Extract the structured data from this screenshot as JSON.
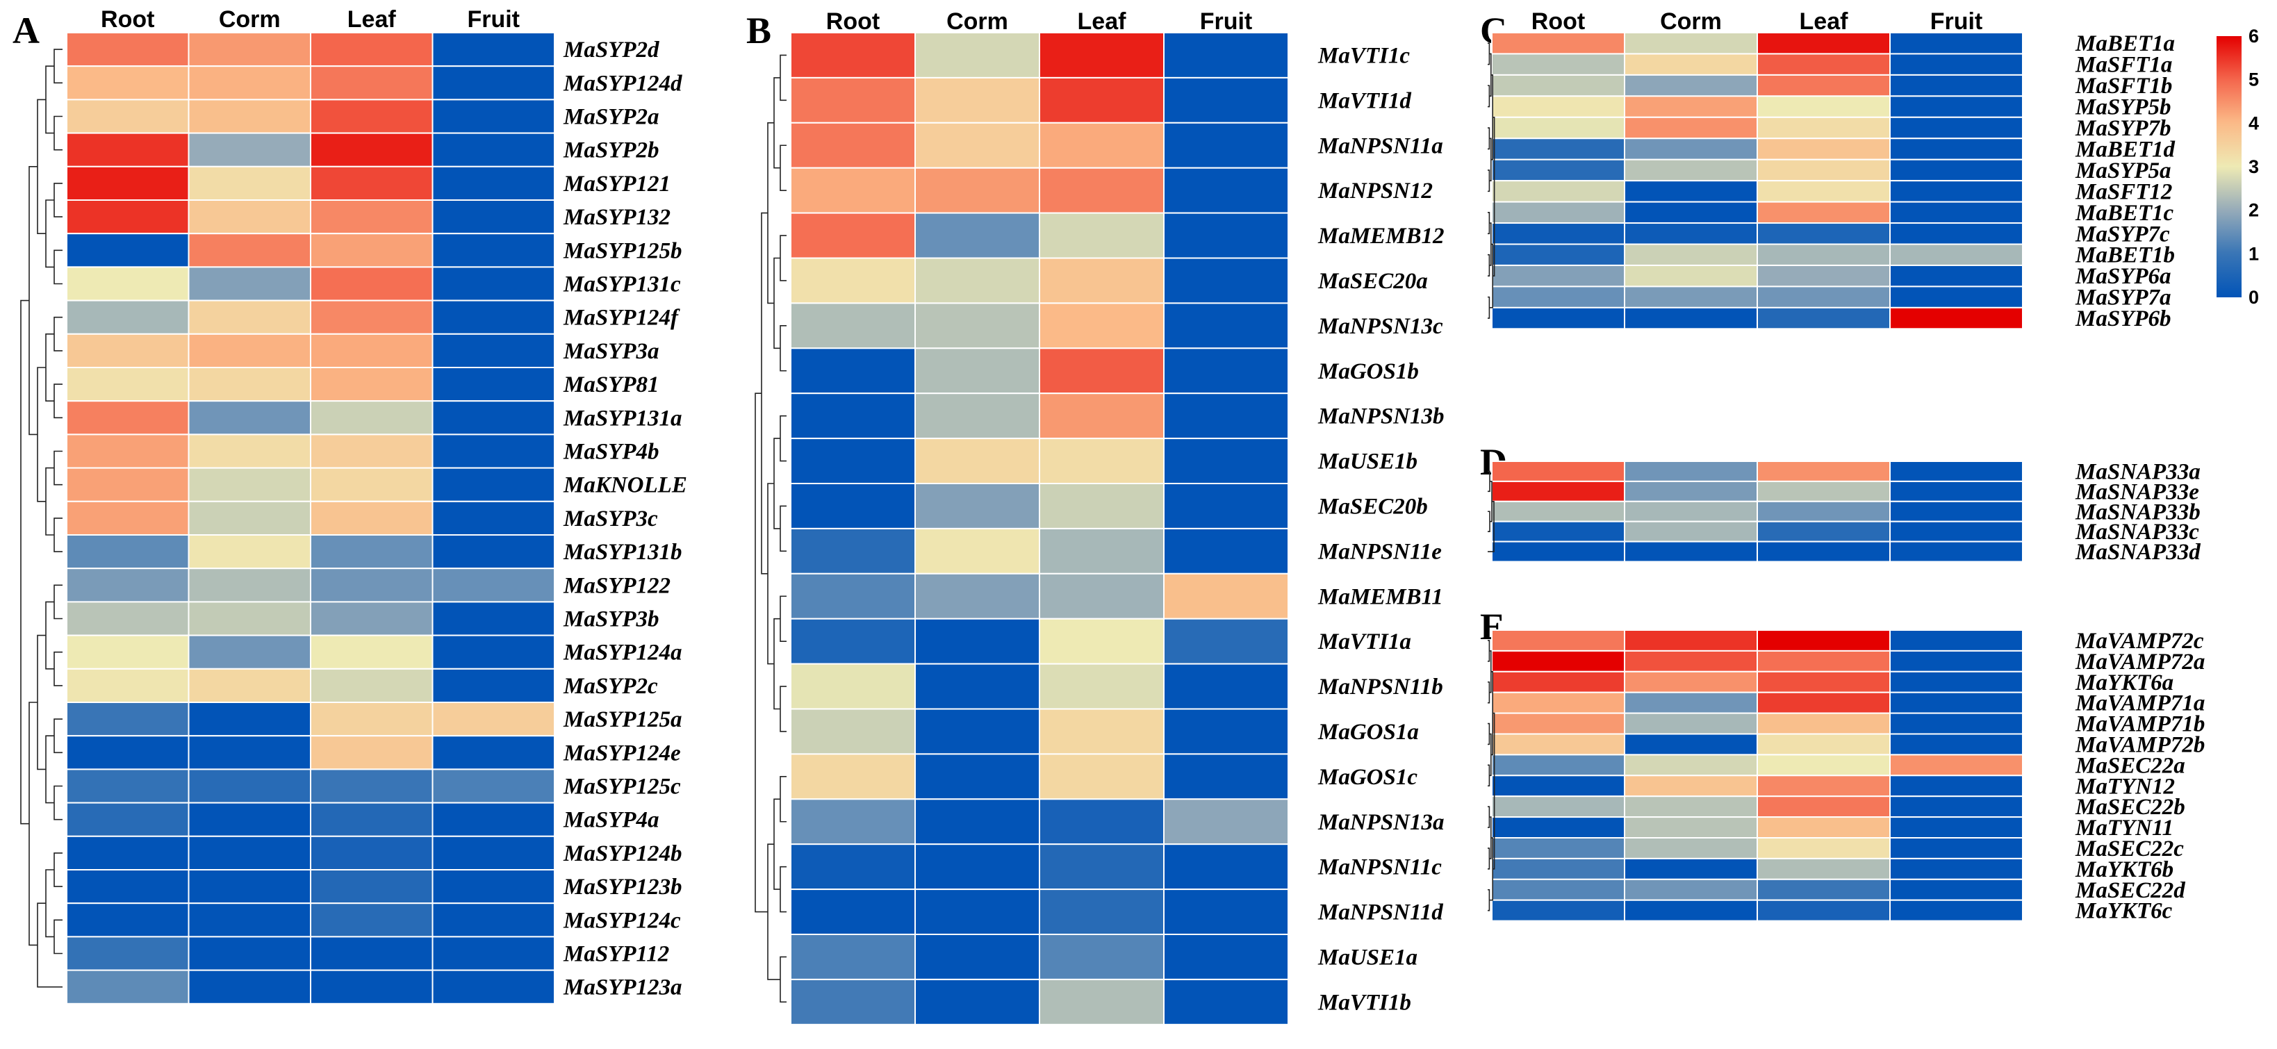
{
  "chart_data": [
    {
      "type": "heatmap",
      "panel": "A",
      "columns": [
        "Root",
        "Corm",
        "Leaf",
        "Fruit"
      ],
      "rows": [
        "MaSYP2d",
        "MaSYP124d",
        "MaSYP2a",
        "MaSYP2b",
        "MaSYP121",
        "MaSYP132",
        "MaSYP125b",
        "MaSYP131c",
        "MaSYP124f",
        "MaSYP3a",
        "MaSYP81",
        "MaSYP131a",
        "MaSYP4b",
        "MaKNOLLE",
        "MaSYP3c",
        "MaSYP131b",
        "MaSYP122",
        "MaSYP3b",
        "MaSYP124a",
        "MaSYP2c",
        "MaSYP125a",
        "MaSYP124e",
        "MaSYP125c",
        "MaSYP4a",
        "MaSYP124b",
        "MaSYP123b",
        "MaSYP124c",
        "MaSYP112",
        "MaSYP123a"
      ],
      "values": [
        [
          4.8,
          4.4,
          5.0,
          0
        ],
        [
          4.0,
          4.1,
          4.8,
          0
        ],
        [
          3.6,
          3.9,
          5.2,
          0
        ],
        [
          5.5,
          2.0,
          5.7,
          0
        ],
        [
          5.7,
          3.3,
          5.3,
          0
        ],
        [
          5.5,
          3.7,
          4.6,
          0
        ],
        [
          0,
          4.7,
          4.3,
          0
        ],
        [
          3.0,
          1.8,
          4.9,
          0
        ],
        [
          2.2,
          3.5,
          4.6,
          0
        ],
        [
          3.7,
          4.1,
          4.2,
          0
        ],
        [
          3.2,
          3.4,
          4.1,
          0
        ],
        [
          4.7,
          1.6,
          2.6,
          0
        ],
        [
          4.3,
          3.3,
          3.6,
          0
        ],
        [
          4.3,
          2.7,
          3.4,
          0
        ],
        [
          4.3,
          2.6,
          3.8,
          0
        ],
        [
          1.4,
          3.1,
          1.5,
          0
        ],
        [
          1.7,
          2.3,
          1.6,
          1.5
        ],
        [
          2.4,
          2.5,
          1.8,
          0
        ],
        [
          3.0,
          1.6,
          3.0,
          0
        ],
        [
          3.1,
          3.4,
          2.7,
          0
        ],
        [
          1.0,
          0,
          3.5,
          3.6
        ],
        [
          0,
          0,
          3.7,
          0
        ],
        [
          0.9,
          0.7,
          1.0,
          1.2
        ],
        [
          0.7,
          0,
          0.6,
          0
        ],
        [
          0,
          0,
          0.4,
          0
        ],
        [
          0,
          0,
          0.6,
          0
        ],
        [
          0,
          0,
          0.7,
          0
        ],
        [
          0.9,
          0,
          0,
          0
        ],
        [
          1.4,
          0,
          0,
          0
        ]
      ],
      "colorbar": {
        "min": 0,
        "max": 6,
        "ticks": [
          0,
          1,
          2,
          3,
          4,
          5,
          6
        ]
      }
    },
    {
      "type": "heatmap",
      "panel": "B",
      "columns": [
        "Root",
        "Corm",
        "Leaf",
        "Fruit"
      ],
      "rows": [
        "MaVTI1c",
        "MaVTI1d",
        "MaNPSN11a",
        "MaNPSN12",
        "MaMEMB12",
        "MaSEC20a",
        "MaNPSN13c",
        "MaGOS1b",
        "MaNPSN13b",
        "MaUSE1b",
        "MaSEC20b",
        "MaNPSN11e",
        "MaMEMB11",
        "MaVTI1a",
        "MaNPSN11b",
        "MaGOS1a",
        "MaGOS1c",
        "MaNPSN13a",
        "MaNPSN11c",
        "MaNPSN11d",
        "MaUSE1a",
        "MaVTI1b"
      ],
      "values": [
        [
          5.3,
          2.7,
          5.7,
          0
        ],
        [
          4.8,
          3.6,
          5.4,
          0
        ],
        [
          4.8,
          3.6,
          4.2,
          0
        ],
        [
          4.2,
          4.4,
          4.7,
          0
        ],
        [
          4.9,
          1.5,
          2.7,
          0
        ],
        [
          3.2,
          2.7,
          3.8,
          0
        ],
        [
          2.3,
          2.4,
          4.0,
          0
        ],
        [
          0,
          2.3,
          5.1,
          0
        ],
        [
          0,
          2.3,
          4.4,
          0
        ],
        [
          0,
          3.4,
          3.3,
          0
        ],
        [
          0,
          1.8,
          2.6,
          0
        ],
        [
          0.7,
          3.1,
          2.2,
          0
        ],
        [
          1.3,
          1.8,
          2.1,
          3.9
        ],
        [
          0.5,
          0,
          3.0,
          0.7
        ],
        [
          2.9,
          0,
          2.8,
          0
        ],
        [
          2.6,
          0,
          3.4,
          0
        ],
        [
          3.4,
          0,
          3.4,
          0
        ],
        [
          1.5,
          0,
          0.4,
          1.9
        ],
        [
          0.2,
          0,
          0.6,
          0
        ],
        [
          0,
          0,
          0.7,
          0
        ],
        [
          1.2,
          0,
          1.3,
          0
        ],
        [
          1.1,
          0,
          2.3,
          0
        ]
      ]
    },
    {
      "type": "heatmap",
      "panel": "C",
      "columns": [
        "Root",
        "Corm",
        "Leaf",
        "Fruit"
      ],
      "rows": [
        "MaBET1a",
        "MaSFT1a",
        "MaSFT1b",
        "MaSYP5b",
        "MaSYP7b",
        "MaBET1d",
        "MaSYP5a",
        "MaSFT12",
        "MaBET1c",
        "MaSYP7c",
        "MaBET1b",
        "MaSYP6a",
        "MaSYP7a",
        "MaSYP6b"
      ],
      "values": [
        [
          4.6,
          2.7,
          5.8,
          0
        ],
        [
          2.4,
          3.4,
          5.1,
          0
        ],
        [
          2.5,
          1.9,
          4.8,
          0
        ],
        [
          3.1,
          4.3,
          3.0,
          0
        ],
        [
          2.9,
          4.5,
          3.3,
          0
        ],
        [
          0.7,
          1.6,
          3.8,
          0
        ],
        [
          0.7,
          2.4,
          3.4,
          0
        ],
        [
          2.7,
          0,
          3.2,
          0
        ],
        [
          2.1,
          0,
          4.5,
          0
        ],
        [
          0.2,
          0.2,
          0.5,
          0
        ],
        [
          0.5,
          2.6,
          2.2,
          2.2
        ],
        [
          1.8,
          2.8,
          2.0,
          0
        ],
        [
          1.5,
          1.7,
          1.6,
          0
        ],
        [
          0,
          0,
          0.6,
          6.0
        ]
      ]
    },
    {
      "type": "heatmap",
      "panel": "D",
      "columns": [
        "Root",
        "Corm",
        "Leaf",
        "Fruit"
      ],
      "rows": [
        "MaSNAP33a",
        "MaSNAP33e",
        "MaSNAP33b",
        "MaSNAP33c",
        "MaSNAP33d"
      ],
      "values": [
        [
          5.0,
          1.6,
          4.5,
          0
        ],
        [
          5.7,
          1.7,
          2.4,
          0
        ],
        [
          2.3,
          2.2,
          1.6,
          0
        ],
        [
          0.2,
          2.2,
          0.7,
          0
        ],
        [
          0,
          0,
          0,
          0
        ]
      ]
    },
    {
      "type": "heatmap",
      "panel": "E",
      "columns": [
        "Root",
        "Corm",
        "Leaf",
        "Fruit"
      ],
      "rows": [
        "MaVAMP72c",
        "MaVAMP72a",
        "MaYKT6a",
        "MaVAMP71a",
        "MaVAMP71b",
        "MaVAMP72b",
        "MaSEC22a",
        "MaTYN12",
        "MaSEC22b",
        "MaTYN11",
        "MaSEC22c",
        "MaYKT6b",
        "MaSEC22d",
        "MaYKT6c"
      ],
      "values": [
        [
          4.8,
          5.5,
          6.0,
          0
        ],
        [
          6.0,
          5.2,
          4.9,
          0
        ],
        [
          5.4,
          4.5,
          5.2,
          0
        ],
        [
          4.2,
          1.6,
          5.4,
          0
        ],
        [
          4.4,
          2.2,
          3.9,
          0
        ],
        [
          3.7,
          0,
          3.2,
          0
        ],
        [
          1.4,
          2.7,
          3.0,
          4.5
        ],
        [
          0,
          3.8,
          4.6,
          0
        ],
        [
          2.2,
          2.4,
          4.8,
          0
        ],
        [
          0,
          2.4,
          3.9,
          0
        ],
        [
          1.3,
          2.3,
          3.2,
          0
        ],
        [
          1.1,
          0,
          2.3,
          0
        ],
        [
          1.3,
          1.6,
          1.0,
          0
        ],
        [
          0.3,
          0,
          0.4,
          0
        ]
      ]
    }
  ]
}
